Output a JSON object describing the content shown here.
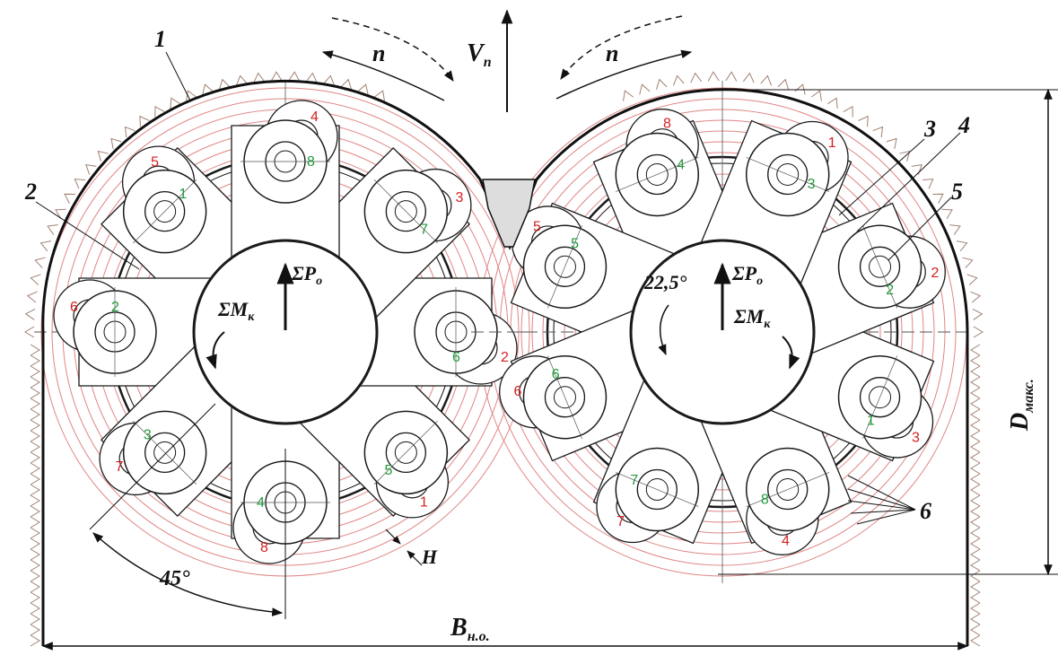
{
  "labels": {
    "part_1": "1",
    "part_2": "2",
    "part_3": "3",
    "part_4": "4",
    "part_5": "5",
    "part_6": "6",
    "rotation_left": "n",
    "rotation_right": "n",
    "feed_velocity": "V",
    "feed_velocity_sub": "п",
    "force_left": "ΣP",
    "force_left_sub": "о",
    "force_right": "ΣP",
    "force_right_sub": "о",
    "moment_left": "ΣM",
    "moment_left_sub": "к",
    "moment_right": "ΣM",
    "moment_right_sub": "к",
    "angle_left": "45°",
    "angle_right": "22,5°",
    "step_h": "H",
    "width_b": "B",
    "width_b_sub": "н.о.",
    "diameter_d": "D",
    "diameter_d_sub": "макс."
  },
  "left_rotor": {
    "outer_numbers": [
      "5",
      "6",
      "7",
      "8",
      "1",
      "2",
      "3",
      "4"
    ],
    "inner_numbers": [
      "1",
      "2",
      "3",
      "4",
      "5",
      "6",
      "7",
      "8"
    ]
  },
  "right_rotor": {
    "outer_numbers": [
      "8",
      "5",
      "6",
      "7",
      "4",
      "3",
      "2",
      "1"
    ],
    "inner_numbers": [
      "4",
      "5",
      "6",
      "7",
      "8",
      "1",
      "2",
      "3"
    ]
  },
  "colors": {
    "line": "#1a1a1a",
    "cut_traces": "#e08585",
    "red_numbers": "#d42020",
    "green_numbers": "#1f9a3a",
    "rock_hatch": "#a08070"
  }
}
